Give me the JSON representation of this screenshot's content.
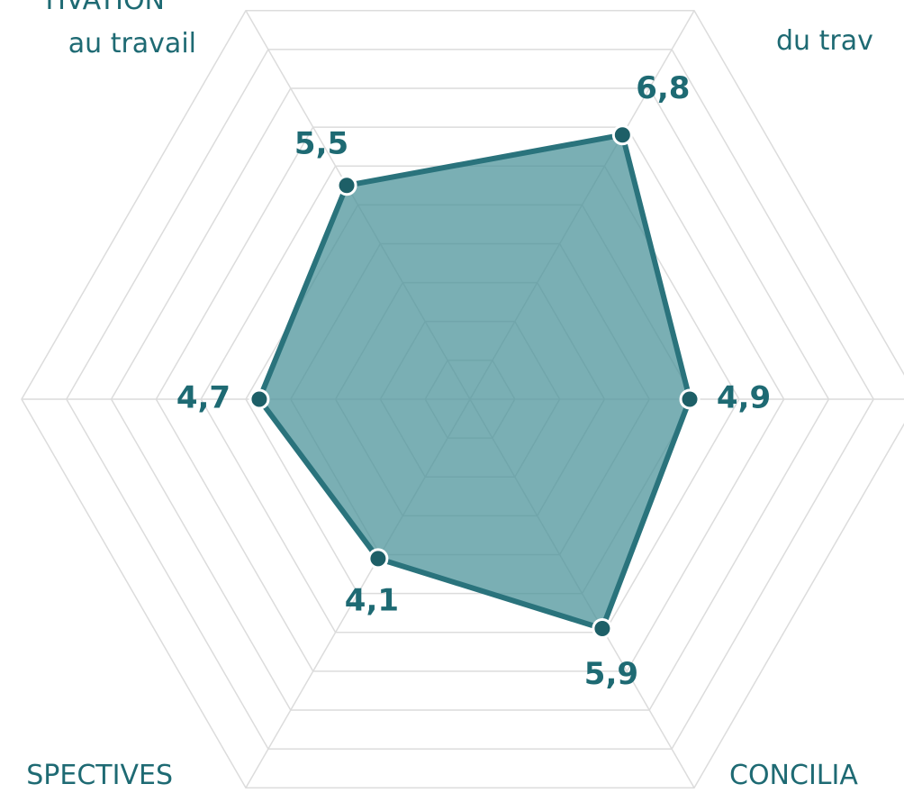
{
  "chart_data": {
    "type": "radar",
    "categories": [
      [
        "du trav"
      ],
      null,
      [
        "CONCILIA"
      ],
      [
        "SPECTIVES"
      ],
      null,
      [
        "TIVATION",
        "au travail"
      ]
    ],
    "values": [
      6.8,
      4.9,
      5.9,
      4.1,
      4.7,
      5.5
    ],
    "value_labels": [
      "6,8",
      "4,9",
      "5,9",
      "4,1",
      "4,7",
      "5,5"
    ],
    "rlim": [
      0,
      10
    ],
    "rticks": [
      1,
      2,
      3,
      4,
      5,
      6,
      7,
      8,
      9,
      10
    ],
    "color": "#4e949b",
    "grid": true
  }
}
